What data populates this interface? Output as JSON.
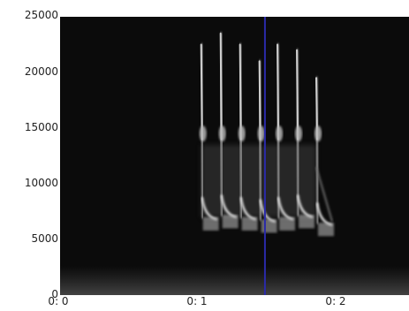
{
  "chart_data": {
    "type": "spectrogram",
    "title": "",
    "xlabel": "",
    "ylabel": "",
    "y_axis": {
      "ticks": [
        "25000",
        "20000",
        "15000",
        "10000",
        "5000",
        "0"
      ],
      "range": [
        0,
        25000
      ]
    },
    "x_axis": {
      "ticks": [
        "0: 0",
        "0: 1",
        "0: 2"
      ],
      "tick_values": [
        0,
        1,
        2
      ],
      "range": [
        0,
        2.48
      ]
    },
    "colormap": "grayscale",
    "background_color": "#0b0b0b",
    "cursor": {
      "time": 1.49,
      "color": "#2a2aa8"
    },
    "calls": [
      {
        "time": 1.03,
        "freq_high": 22500,
        "freq_low": 7000
      },
      {
        "time": 1.17,
        "freq_high": 23500,
        "freq_low": 7200
      },
      {
        "time": 1.31,
        "freq_high": 22500,
        "freq_low": 7000
      },
      {
        "time": 1.45,
        "freq_high": 21000,
        "freq_low": 6800
      },
      {
        "time": 1.58,
        "freq_high": 22500,
        "freq_low": 7000
      },
      {
        "time": 1.72,
        "freq_high": 22000,
        "freq_low": 7200
      },
      {
        "time": 1.86,
        "freq_high": 19500,
        "freq_low": 6500
      }
    ],
    "grid": false,
    "legend": "none"
  }
}
